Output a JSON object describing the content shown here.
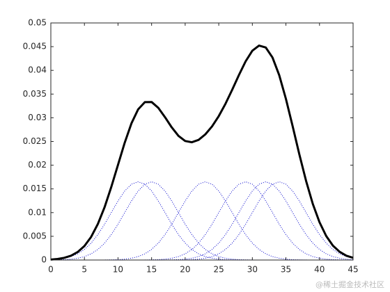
{
  "chart_data": {
    "type": "line",
    "x": [
      0,
      1,
      2,
      3,
      4,
      5,
      6,
      7,
      8,
      9,
      10,
      11,
      12,
      13,
      14,
      15,
      16,
      17,
      18,
      19,
      20,
      21,
      22,
      23,
      24,
      25,
      26,
      27,
      28,
      29,
      30,
      31,
      32,
      33,
      34,
      35,
      36,
      37,
      38,
      39,
      40,
      41,
      42,
      43,
      44,
      45
    ],
    "series": [
      {
        "color": "#000000",
        "line_style": "solid",
        "line_width": 3,
        "values": [
          9e-05,
          0.00022,
          0.00046,
          0.0009,
          0.00169,
          0.00295,
          0.00488,
          0.00759,
          0.01113,
          0.01541,
          0.02008,
          0.02475,
          0.02882,
          0.03178,
          0.0333,
          0.03333,
          0.03209,
          0.03012,
          0.02797,
          0.02619,
          0.0251,
          0.02484,
          0.02534,
          0.0265,
          0.02818,
          0.03035,
          0.03295,
          0.03591,
          0.039,
          0.0419,
          0.04414,
          0.04523,
          0.04482,
          0.04271,
          0.03899,
          0.03398,
          0.02822,
          0.02227,
          0.01669,
          0.01184,
          0.00797,
          0.00506,
          0.00303,
          0.00173,
          0.00091,
          0.00046
        ]
      },
      {
        "color": "#0000cc",
        "line_style": "dotted",
        "line_width": 1,
        "values": [
          8e-05,
          0.00018,
          0.00038,
          0.00072,
          0.00131,
          0.00223,
          0.00357,
          0.00536,
          0.00755,
          0.01001,
          0.01245,
          0.01456,
          0.01599,
          0.0165,
          0.01599,
          0.01456,
          0.01245,
          0.01001,
          0.00755,
          0.00536,
          0.00357,
          0.00223,
          0.00131,
          0.00072,
          0.00038,
          0.00018,
          8e-05,
          4e-05,
          1e-05,
          0,
          0,
          0,
          0,
          0,
          0,
          0,
          0,
          0,
          0,
          0,
          0,
          0,
          0,
          0,
          0,
          0
        ]
      },
      {
        "color": "#0000cc",
        "line_style": "dotted",
        "line_width": 1,
        "values": [
          1e-05,
          4e-05,
          8e-05,
          0.00018,
          0.00038,
          0.00072,
          0.00131,
          0.00223,
          0.00357,
          0.00536,
          0.00755,
          0.01001,
          0.01245,
          0.01456,
          0.01599,
          0.0165,
          0.01599,
          0.01456,
          0.01245,
          0.01001,
          0.00755,
          0.00536,
          0.00357,
          0.00223,
          0.00131,
          0.00072,
          0.00038,
          0.00018,
          8e-05,
          4e-05,
          1e-05,
          0,
          0,
          0,
          0,
          0,
          0,
          0,
          0,
          0,
          0,
          0,
          0,
          0,
          0,
          0
        ]
      },
      {
        "color": "#0000cc",
        "line_style": "dotted",
        "line_width": 1,
        "values": [
          0,
          0,
          0,
          0,
          0,
          0,
          0,
          0,
          1e-05,
          4e-05,
          8e-05,
          0.00018,
          0.00038,
          0.00072,
          0.00131,
          0.00223,
          0.00357,
          0.00536,
          0.00755,
          0.01001,
          0.01245,
          0.01456,
          0.01599,
          0.0165,
          0.01599,
          0.01456,
          0.01245,
          0.01001,
          0.00755,
          0.00536,
          0.00357,
          0.00223,
          0.00131,
          0.00072,
          0.00038,
          0.00018,
          8e-05,
          4e-05,
          1e-05,
          0,
          0,
          0,
          0,
          0,
          0,
          0
        ]
      },
      {
        "color": "#0000cc",
        "line_style": "dotted",
        "line_width": 1,
        "values": [
          0,
          0,
          0,
          0,
          0,
          0,
          0,
          0,
          0,
          0,
          0,
          0,
          0,
          0,
          1e-05,
          4e-05,
          8e-05,
          0.00018,
          0.00038,
          0.00072,
          0.00131,
          0.00223,
          0.00357,
          0.00536,
          0.00755,
          0.01001,
          0.01245,
          0.01456,
          0.01599,
          0.0165,
          0.01599,
          0.01456,
          0.01245,
          0.01001,
          0.00755,
          0.00536,
          0.00357,
          0.00223,
          0.00131,
          0.00072,
          0.00038,
          0.00018,
          8e-05,
          4e-05,
          1e-05,
          0
        ]
      },
      {
        "color": "#0000cc",
        "line_style": "dotted",
        "line_width": 1,
        "values": [
          0,
          0,
          0,
          0,
          0,
          0,
          0,
          0,
          0,
          0,
          0,
          0,
          0,
          0,
          0,
          0,
          0,
          1e-05,
          4e-05,
          8e-05,
          0.00018,
          0.00038,
          0.00072,
          0.00131,
          0.00223,
          0.00357,
          0.00536,
          0.00755,
          0.01001,
          0.01245,
          0.01456,
          0.01599,
          0.0165,
          0.01599,
          0.01456,
          0.01245,
          0.01001,
          0.00755,
          0.00536,
          0.00357,
          0.00223,
          0.00131,
          0.00072,
          0.00038,
          0.00018,
          8e-05
        ]
      },
      {
        "color": "#0000cc",
        "line_style": "dotted",
        "line_width": 1,
        "values": [
          0,
          0,
          0,
          0,
          0,
          0,
          0,
          0,
          0,
          0,
          0,
          0,
          0,
          0,
          0,
          0,
          0,
          0,
          0,
          1e-05,
          4e-05,
          8e-05,
          0.00018,
          0.00038,
          0.00072,
          0.00131,
          0.00223,
          0.00357,
          0.00536,
          0.00755,
          0.01001,
          0.01245,
          0.01456,
          0.01599,
          0.0165,
          0.01599,
          0.01456,
          0.01245,
          0.01001,
          0.00755,
          0.00536,
          0.00357,
          0.00223,
          0.00131,
          0.00072,
          0.00038
        ]
      }
    ],
    "xlim": [
      0,
      45
    ],
    "xticks": [
      0,
      5,
      10,
      15,
      20,
      25,
      30,
      35,
      40,
      45
    ],
    "ylim": [
      0,
      0.05
    ],
    "yticks": [
      0,
      0.005,
      0.01,
      0.015,
      0.02,
      0.025,
      0.03,
      0.035,
      0.04,
      0.045,
      0.05
    ],
    "grid": false
  },
  "watermark": "@稀土掘金技术社区"
}
